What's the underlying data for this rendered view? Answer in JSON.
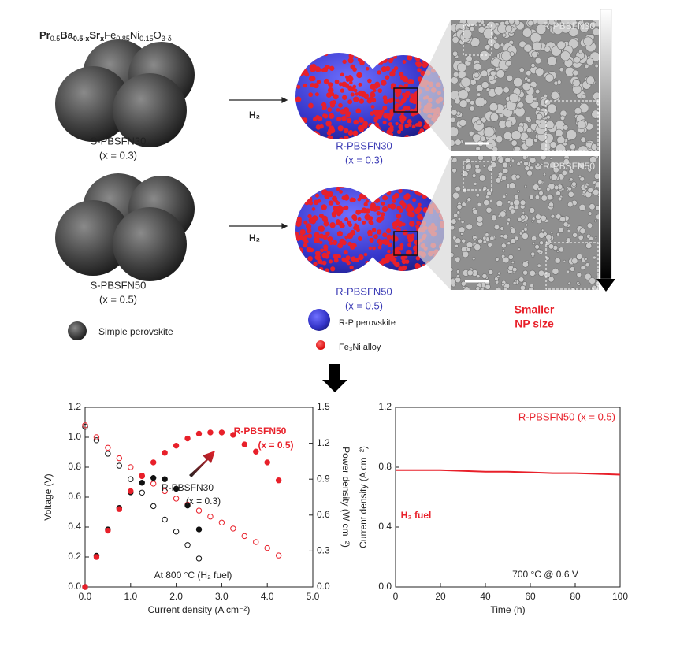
{
  "schematic": {
    "formula": [
      "Pr",
      "0.5",
      "Ba",
      "0.5-x",
      "Sr",
      "x",
      "Fe",
      "0.85",
      "Ni",
      "0.15",
      "O",
      "3-δ"
    ],
    "simple_30": {
      "name": "S-PBSFN30",
      "composition": "(x = 0.3)"
    },
    "simple_50": {
      "name": "S-PBSFN50",
      "composition": "(x = 0.5)"
    },
    "reduced_30": {
      "name": "R-PBSFN30",
      "composition": "(x = 0.3)"
    },
    "reduced_50": {
      "name": "R-PBSFN50",
      "composition": "(x = 0.5)"
    },
    "arrows": [
      "H₂",
      "H₂"
    ],
    "sem_labels": [
      "R-PBSFN30",
      "R-PBSFN50"
    ],
    "legend": [
      "Simple perovskite",
      "R-P perovskite",
      "Fe₃Ni alloy"
    ],
    "trend": [
      "Smaller",
      "NP size"
    ]
  },
  "chart_data": [
    {
      "type": "scatter",
      "xlabel": "Current density (A cm⁻²)",
      "ylabel": "Voltage (V)",
      "y2label": "Power density (W cm⁻²)",
      "xlim": [
        0,
        5
      ],
      "ylim": [
        0,
        1.2
      ],
      "y2lim": [
        0,
        1.5
      ],
      "xticks": [
        {
          "value": 0,
          "label": "0.0"
        },
        {
          "value": 1,
          "label": "1.0"
        },
        {
          "value": 2,
          "label": "2.0"
        },
        {
          "value": 3,
          "label": "3.0"
        },
        {
          "value": 4,
          "label": "4.0"
        },
        {
          "value": 5,
          "label": "5.0"
        }
      ],
      "yticks": [
        {
          "value": 0,
          "label": "0.0"
        },
        0.2,
        0.4,
        0.6,
        0.8,
        {
          "value": 1,
          "label": "1.0"
        },
        1.2
      ],
      "y2ticks": [
        {
          "value": 0,
          "label": "0.0"
        },
        0.3,
        0.6,
        0.9,
        1.2,
        1.5
      ],
      "annotations": [
        "R-PBSFN50",
        "(x = 0.5)",
        "R-PBSFN30",
        "(x = 0.3)",
        "At 800 °C (H₂ fuel)"
      ],
      "series": [
        {
          "color": "#111111",
          "marker": "open",
          "x": [
            0,
            0.25,
            0.5,
            0.75,
            1,
            1.25,
            1.5,
            1.75,
            2,
            2.25,
            2.5
          ],
          "values": [
            1.07,
            0.98,
            0.89,
            0.81,
            0.72,
            0.63,
            0.54,
            0.45,
            0.37,
            0.28,
            0.19
          ]
        },
        {
          "color": "#e8202a",
          "marker": "open",
          "x": [
            0,
            0.25,
            0.5,
            0.75,
            1,
            1.25,
            1.5,
            1.75,
            2,
            2.25,
            2.5,
            2.75,
            3,
            3.25,
            3.5,
            3.75,
            4,
            4.25
          ],
          "values": [
            1.08,
            1.0,
            0.93,
            0.86,
            0.8,
            0.74,
            0.69,
            0.64,
            0.59,
            0.55,
            0.51,
            0.47,
            0.43,
            0.39,
            0.34,
            0.3,
            0.26,
            0.21
          ]
        },
        {
          "color": "#111111",
          "marker": "filled",
          "axis": "y2",
          "x": [
            0,
            0.25,
            0.5,
            0.75,
            1,
            1.25,
            1.5,
            1.75,
            2,
            2.25,
            2.5
          ],
          "values": [
            0,
            0.26,
            0.48,
            0.66,
            0.79,
            0.87,
            0.91,
            0.9,
            0.82,
            0.68,
            0.48
          ]
        },
        {
          "color": "#e8202a",
          "marker": "filled",
          "axis": "y2",
          "x": [
            0,
            0.25,
            0.5,
            0.75,
            1,
            1.25,
            1.5,
            1.75,
            2,
            2.25,
            2.5,
            2.75,
            3,
            3.25,
            3.5,
            3.75,
            4,
            4.25
          ],
          "values": [
            0,
            0.25,
            0.47,
            0.65,
            0.8,
            0.93,
            1.04,
            1.12,
            1.18,
            1.24,
            1.28,
            1.29,
            1.29,
            1.27,
            1.19,
            1.13,
            1.04,
            0.89
          ]
        }
      ]
    },
    {
      "type": "line",
      "xlabel": "Time (h)",
      "ylabel": "Current density (A cm⁻²)",
      "xlim": [
        0,
        100
      ],
      "ylim": [
        0,
        1.2
      ],
      "xticks": [
        0,
        20,
        40,
        60,
        80,
        100
      ],
      "yticks": [
        {
          "value": 0,
          "label": "0.0"
        },
        0.4,
        0.8,
        1.2
      ],
      "annotations": [
        "H₂ fuel",
        "700 °C @ 0.6 V"
      ],
      "series": [
        {
          "name": "R-PBSFN50 (x = 0.5)",
          "color": "#e8202a",
          "x": [
            0,
            10,
            20,
            30,
            40,
            50,
            60,
            70,
            80,
            90,
            100
          ],
          "values": [
            0.78,
            0.78,
            0.78,
            0.775,
            0.77,
            0.77,
            0.765,
            0.76,
            0.76,
            0.755,
            0.75
          ]
        }
      ]
    }
  ]
}
